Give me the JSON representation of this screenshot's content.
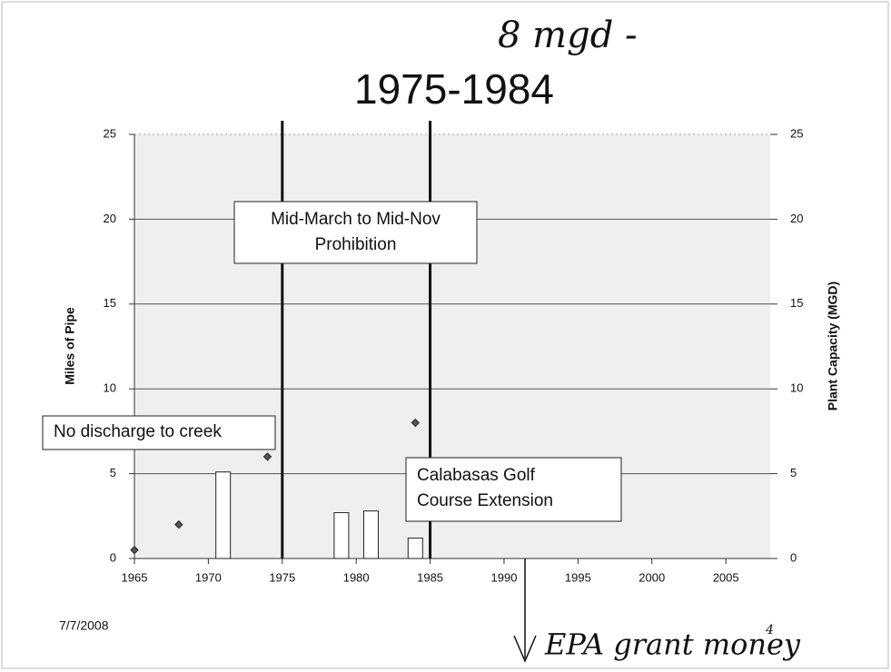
{
  "chart_data": {
    "type": "bar",
    "title": "1975-1984",
    "y_label": "Miles of Pipe",
    "y2_label": "Plant Capacity (MGD)",
    "xlim": [
      1965,
      2008
    ],
    "xticks": [
      1965,
      1970,
      1975,
      1980,
      1985,
      1990,
      1995,
      2000,
      2005
    ],
    "ylim": [
      0,
      25
    ],
    "yticks": [
      0,
      5,
      10,
      15,
      20,
      25
    ],
    "y2lim": [
      0,
      25
    ],
    "y2ticks": [
      0,
      5,
      10,
      15,
      20,
      25
    ],
    "grid": true,
    "series": [
      {
        "type": "bar",
        "color": "#ffffff",
        "x": [
          1971,
          1979,
          1981,
          1984
        ],
        "values": [
          5.1,
          2.7,
          2.8,
          1.2
        ]
      },
      {
        "type": "scatter",
        "axis": "y2",
        "color": "#555555",
        "x": [
          1965,
          1968,
          1974,
          1984
        ],
        "values": [
          0.5,
          2,
          6,
          8
        ]
      }
    ],
    "vlines": [
      1975,
      1985
    ],
    "annotations": [
      {
        "lines": [
          "Mid-March to Mid-Nov",
          "Prohibition"
        ]
      },
      {
        "lines": [
          "No discharge to creek"
        ]
      },
      {
        "lines": [
          "Calabasas Golf",
          "Course Extension"
        ]
      }
    ],
    "handwritten": [
      "8 mgd -",
      "EPA grant money",
      "4"
    ],
    "date": "7/7/2008"
  }
}
